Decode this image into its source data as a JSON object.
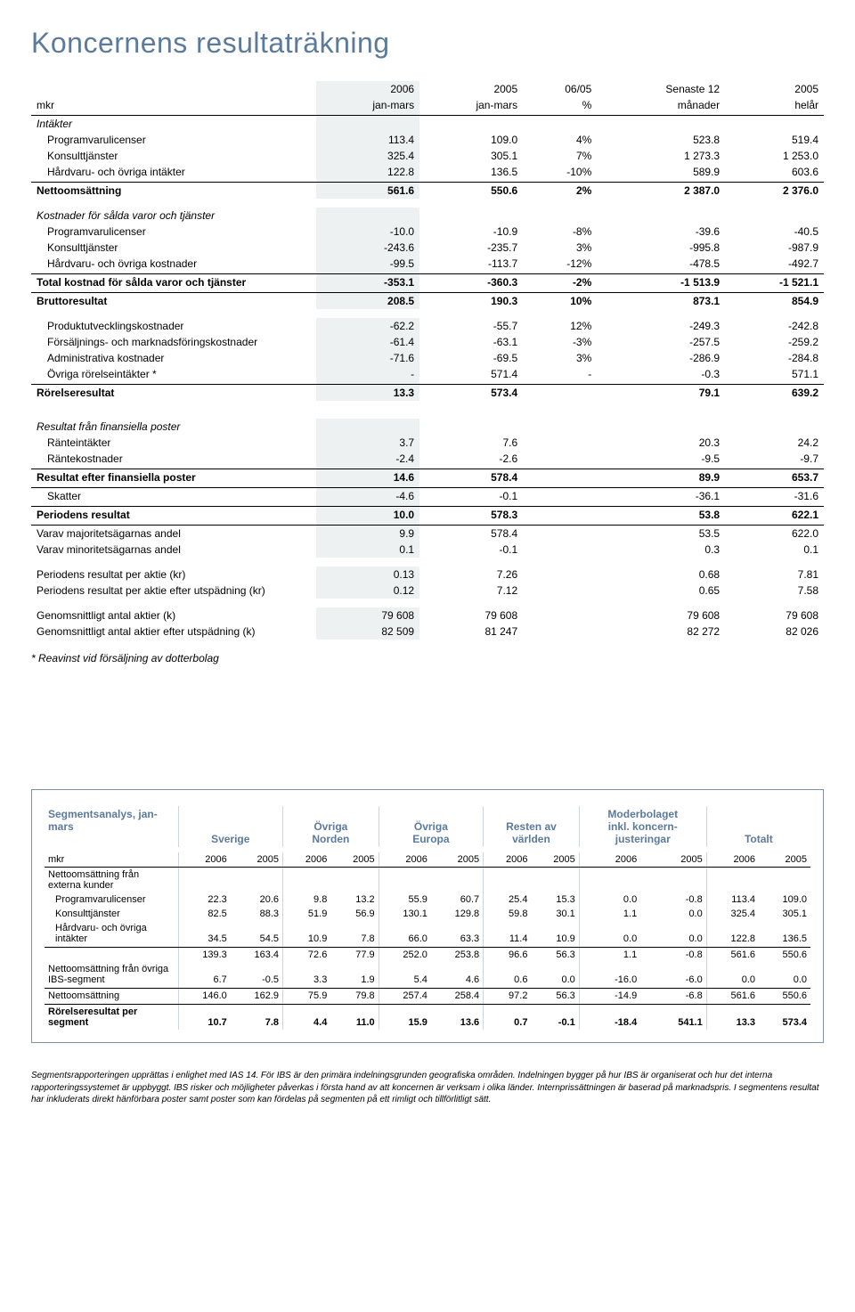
{
  "title": "Koncernens resultaträkning",
  "col_headers": {
    "unit": "mkr",
    "c1a": "2006",
    "c1b": "jan-mars",
    "c2a": "2005",
    "c2b": "jan-mars",
    "c3a": "06/05",
    "c3b": "%",
    "c4a": "Senaste 12",
    "c4b": "månader",
    "c5a": "2005",
    "c5b": "helår"
  },
  "rows": [
    {
      "t": "italic",
      "label": "Intäkter"
    },
    {
      "t": "indent",
      "label": "Programvarulicenser",
      "v": [
        "113.4",
        "109.0",
        "4%",
        "523.8",
        "519.4"
      ]
    },
    {
      "t": "indent",
      "label": "Konsulttjänster",
      "v": [
        "325.4",
        "305.1",
        "7%",
        "1 273.3",
        "1 253.0"
      ]
    },
    {
      "t": "indent rule-bottom",
      "label": "Hårdvaru- och övriga intäkter",
      "v": [
        "122.8",
        "136.5",
        "-10%",
        "589.9",
        "603.6"
      ]
    },
    {
      "t": "bold",
      "label": "Nettoomsättning",
      "v": [
        "561.6",
        "550.6",
        "2%",
        "2 387.0",
        "2 376.0"
      ]
    },
    {
      "t": "spacer"
    },
    {
      "t": "italic",
      "label": "Kostnader för sålda varor och tjänster"
    },
    {
      "t": "indent",
      "label": "Programvarulicenser",
      "v": [
        "-10.0",
        "-10.9",
        "-8%",
        "-39.6",
        "-40.5"
      ]
    },
    {
      "t": "indent",
      "label": "Konsulttjänster",
      "v": [
        "-243.6",
        "-235.7",
        "3%",
        "-995.8",
        "-987.9"
      ]
    },
    {
      "t": "indent rule-bottom",
      "label": "Hårdvaru- och övriga kostnader",
      "v": [
        "-99.5",
        "-113.7",
        "-12%",
        "-478.5",
        "-492.7"
      ]
    },
    {
      "t": "bold rule-bottom",
      "label": "Total kostnad för sålda varor och tjänster",
      "v": [
        "-353.1",
        "-360.3",
        "-2%",
        "-1 513.9",
        "-1 521.1"
      ]
    },
    {
      "t": "bold",
      "label": "Bruttoresultat",
      "v": [
        "208.5",
        "190.3",
        "10%",
        "873.1",
        "854.9"
      ]
    },
    {
      "t": "spacer"
    },
    {
      "t": "indent",
      "label": "Produktutvecklingskostnader",
      "v": [
        "-62.2",
        "-55.7",
        "12%",
        "-249.3",
        "-242.8"
      ]
    },
    {
      "t": "indent",
      "label": "Försäljnings- och marknadsföringskostnader",
      "v": [
        "-61.4",
        "-63.1",
        "-3%",
        "-257.5",
        "-259.2"
      ]
    },
    {
      "t": "indent",
      "label": "Administrativa kostnader",
      "v": [
        "-71.6",
        "-69.5",
        "3%",
        "-286.9",
        "-284.8"
      ]
    },
    {
      "t": "indent rule-bottom",
      "label": "Övriga rörelseintäkter *",
      "v": [
        "-",
        "571.4",
        "-",
        "-0.3",
        "571.1"
      ]
    },
    {
      "t": "bold",
      "label": "Rörelseresultat",
      "v": [
        "13.3",
        "573.4",
        "",
        "79.1",
        "639.2"
      ]
    },
    {
      "t": "spacer"
    },
    {
      "t": "spacer"
    },
    {
      "t": "italic",
      "label": "Resultat från finansiella poster"
    },
    {
      "t": "indent",
      "label": "Ränteintäkter",
      "v": [
        "3.7",
        "7.6",
        "",
        "20.3",
        "24.2"
      ]
    },
    {
      "t": "indent rule-bottom",
      "label": "Räntekostnader",
      "v": [
        "-2.4",
        "-2.6",
        "",
        "-9.5",
        "-9.7"
      ]
    },
    {
      "t": "bold rule-bottom",
      "label": "Resultat efter finansiella poster",
      "v": [
        "14.6",
        "578.4",
        "",
        "89.9",
        "653.7"
      ]
    },
    {
      "t": "indent rule-bottom",
      "label": "Skatter",
      "v": [
        "-4.6",
        "-0.1",
        "",
        "-36.1",
        "-31.6"
      ]
    },
    {
      "t": "bold rule-bottom",
      "label": "Periodens resultat",
      "v": [
        "10.0",
        "578.3",
        "",
        "53.8",
        "622.1"
      ]
    },
    {
      "t": "",
      "label": "Varav majoritetsägarnas andel",
      "v": [
        "9.9",
        "578.4",
        "",
        "53.5",
        "622.0"
      ]
    },
    {
      "t": "",
      "label": "Varav minoritetsägarnas andel",
      "v": [
        "0.1",
        "-0.1",
        "",
        "0.3",
        "0.1"
      ]
    },
    {
      "t": "spacer"
    },
    {
      "t": "",
      "label": "Periodens resultat per aktie (kr)",
      "v": [
        "0.13",
        "7.26",
        "",
        "0.68",
        "7.81"
      ]
    },
    {
      "t": "",
      "label": "Periodens resultat per aktie efter utspädning (kr)",
      "v": [
        "0.12",
        "7.12",
        "",
        "0.65",
        "7.58"
      ]
    },
    {
      "t": "spacer"
    },
    {
      "t": "",
      "label": "Genomsnittligt antal aktier (k)",
      "v": [
        "79 608",
        "79 608",
        "",
        "79 608",
        "79 608"
      ]
    },
    {
      "t": "",
      "label": "Genomsnittligt antal aktier efter utspädning (k)",
      "v": [
        "82 509",
        "81 247",
        "",
        "82 272",
        "82 026"
      ]
    }
  ],
  "footnote1": "* Reavinst vid försäljning av dotterbolag",
  "segment": {
    "title": "Segmentsanalys, jan-mars",
    "groups": [
      "Sverige",
      "Övriga\nNorden",
      "Övriga\nEuropa",
      "Resten av\nvärlden",
      "Moderbolaget\ninkl. koncern-\njusteringar",
      "Totalt"
    ],
    "unit": "mkr",
    "years": [
      "2006",
      "2005"
    ],
    "rows": [
      {
        "t": "",
        "label": "Nettoomsättning från externa kunder"
      },
      {
        "t": "indent",
        "label": "Programvarulicenser",
        "v": [
          "22.3",
          "20.6",
          "9.8",
          "13.2",
          "55.9",
          "60.7",
          "25.4",
          "15.3",
          "0.0",
          "-0.8",
          "113.4",
          "109.0"
        ]
      },
      {
        "t": "indent",
        "label": "Konsulttjänster",
        "v": [
          "82.5",
          "88.3",
          "51.9",
          "56.9",
          "130.1",
          "129.8",
          "59.8",
          "30.1",
          "1.1",
          "0.0",
          "325.4",
          "305.1"
        ]
      },
      {
        "t": "indent rule-bottom",
        "label": "Hårdvaru- och övriga intäkter",
        "v": [
          "34.5",
          "54.5",
          "10.9",
          "7.8",
          "66.0",
          "63.3",
          "11.4",
          "10.9",
          "0.0",
          "0.0",
          "122.8",
          "136.5"
        ]
      },
      {
        "t": "",
        "label": "",
        "v": [
          "139.3",
          "163.4",
          "72.6",
          "77.9",
          "252.0",
          "253.8",
          "96.6",
          "56.3",
          "1.1",
          "-0.8",
          "561.6",
          "550.6"
        ]
      },
      {
        "t": "rule-bottom",
        "label": "Nettoomsättning från övriga IBS-segment",
        "v": [
          "6.7",
          "-0.5",
          "3.3",
          "1.9",
          "5.4",
          "4.6",
          "0.6",
          "0.0",
          "-16.0",
          "-6.0",
          "0.0",
          "0.0"
        ]
      },
      {
        "t": "rule-bottom",
        "label": "Nettoomsättning",
        "v": [
          "146.0",
          "162.9",
          "75.9",
          "79.8",
          "257.4",
          "258.4",
          "97.2",
          "56.3",
          "-14.9",
          "-6.8",
          "561.6",
          "550.6"
        ]
      },
      {
        "t": "bold",
        "label": "Rörelseresultat per segment",
        "v": [
          "10.7",
          "7.8",
          "4.4",
          "11.0",
          "15.9",
          "13.6",
          "0.7",
          "-0.1",
          "-18.4",
          "541.1",
          "13.3",
          "573.4"
        ]
      }
    ]
  },
  "footnote2": "Segmentsrapporteringen upprättas i enlighet med IAS 14. För IBS är den primära indelningsgrunden geografiska områden. Indelningen bygger på hur IBS är organiserat och hur det interna rapporteringssystemet är uppbyggt. IBS risker och möjligheter påverkas i första hand av att koncernen är verksam i olika länder. Internprissättningen är baserad på marknadspris. I segmentens resultat har inkluderats direkt hänförbara poster samt poster som kan fördelas på segmenten på ett rimligt och tillförlitligt sätt."
}
